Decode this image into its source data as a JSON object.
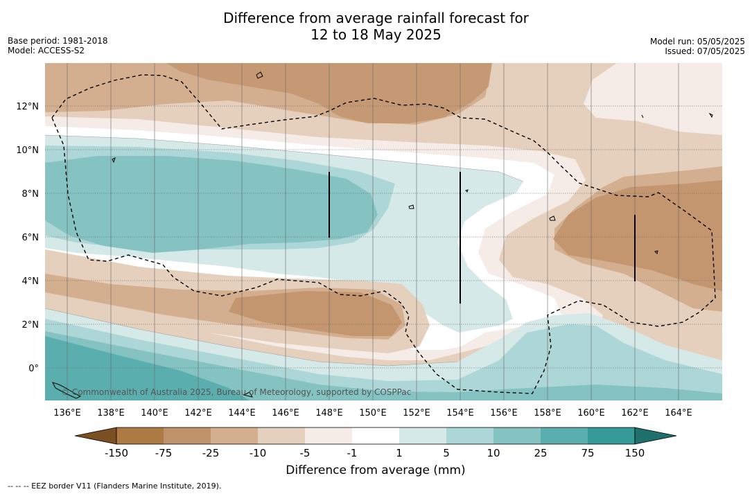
{
  "title_line1": "Difference from average rainfall forecast for",
  "title_line2": "12 to 18 May 2025",
  "meta_left": [
    "Base period: 1981-2018",
    "Model: ACCESS-S2"
  ],
  "meta_right": [
    "Model run: 05/05/2025",
    "Issued: 07/05/2025"
  ],
  "x_ticks": [
    "136°E",
    "138°E",
    "140°E",
    "142°E",
    "144°E",
    "146°E",
    "148°E",
    "150°E",
    "152°E",
    "154°E",
    "156°E",
    "158°E",
    "160°E",
    "162°E",
    "164°E"
  ],
  "y_ticks": [
    "12°N",
    "10°N",
    "8°N",
    "6°N",
    "4°N",
    "2°N",
    "0°"
  ],
  "credit": "© Commonwealth of Australia 2025, Bureau of Meteorology, supported by COSPPac",
  "colorbar": {
    "labels": [
      "-150",
      "-75",
      "-25",
      "-10",
      "-5",
      "-1",
      "1",
      "5",
      "10",
      "25",
      "75",
      "150"
    ],
    "colors": [
      "#7a4f22",
      "#ae7a44",
      "#c0926a",
      "#d3af8f",
      "#e5d0bd",
      "#f5ece7",
      "#ffffff",
      "#d5e9e8",
      "#add7d6",
      "#84c3c2",
      "#5baeae",
      "#359a98",
      "#1f6f6d"
    ],
    "title": "Difference from average (mm)"
  },
  "footnote": "--  --  -- EEZ border V11 (Flanders Marine Institute, 2019).",
  "colors": {
    "dry_strong": "#c0926a",
    "dry_moderate": "#d3af8f",
    "dry_light": "#e5d0bd",
    "dry_slight": "#f5ece7",
    "neutral": "#ffffff",
    "wet_slight": "#d5e9e8",
    "wet_light": "#add7d6",
    "wet_moderate": "#84c3c2",
    "wet_strong": "#5baeae"
  }
}
